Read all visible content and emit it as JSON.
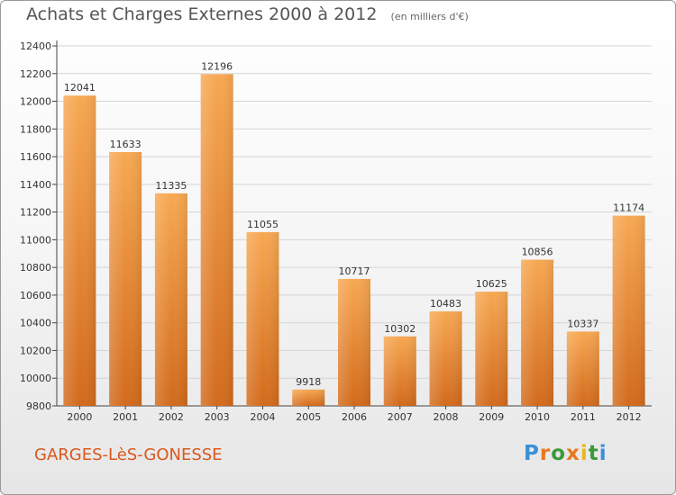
{
  "title": "Achats et Charges Externes 2000 à 2012",
  "unit_note": "(en milliers d'€)",
  "city": "GARGES-LèS-GONESSE",
  "logo": {
    "letters": [
      "P",
      "r",
      "o",
      "x",
      "i",
      "t",
      "i"
    ],
    "colors": [
      "#3a8fd8",
      "#e8781e",
      "#3a9a3a",
      "#e8781e",
      "#e8b81e",
      "#3a9a3a",
      "#3a8fd8"
    ]
  },
  "colors": {
    "bar_top": "#f7a852",
    "bar_bottom": "#d26a1c",
    "city": "#d9581c"
  },
  "chart_data": {
    "type": "bar",
    "title": "Achats et Charges Externes 2000 à 2012",
    "categories": [
      "2000",
      "2001",
      "2002",
      "2003",
      "2004",
      "2005",
      "2006",
      "2007",
      "2008",
      "2009",
      "2010",
      "2011",
      "2012"
    ],
    "values": [
      12041,
      11633,
      11335,
      12196,
      11055,
      9918,
      10717,
      10302,
      10483,
      10625,
      10856,
      10337,
      11174
    ],
    "ylim": [
      9800,
      12400
    ],
    "yticks": [
      9800,
      10000,
      10200,
      10400,
      10600,
      10800,
      11000,
      11200,
      11400,
      11600,
      11800,
      12000,
      12200,
      12400
    ],
    "grid": true,
    "xlabel": "",
    "ylabel": ""
  }
}
